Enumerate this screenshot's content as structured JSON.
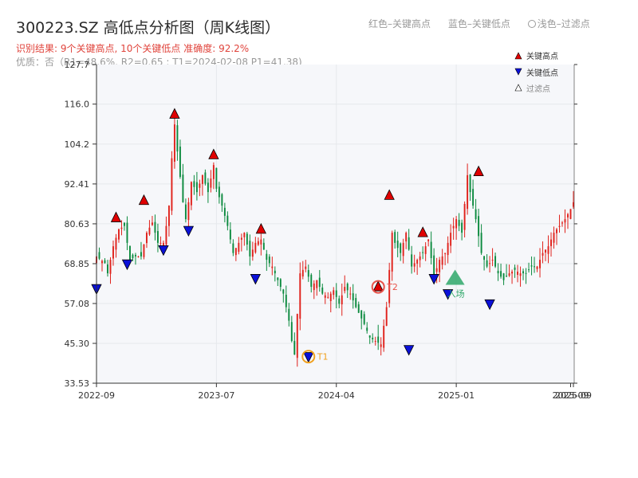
{
  "header": {
    "title": "300223.SZ 高低点分析图（周K线图）",
    "summary": "识别结果: 9个关键高点, 10个关键低点   准确度: 92.2%",
    "quality": "优质：否（R1=48.6%, R2=0.65 ; T1=2024-02-08 P1=41.38)"
  },
  "top_legend": {
    "red_high": "红色–关键高点",
    "blue_low": "蓝色–关键低点",
    "filtered": "浅色–过滤点"
  },
  "colors": {
    "up": "#e0211b",
    "down": "#0b8a3e",
    "high_marker": "#e00000",
    "low_marker": "#0a10d8",
    "t1": "#f0a01e",
    "t2": "#e8534b",
    "entry": "#2fa86a",
    "grid": "#e6e8ec",
    "plot_bg": "#f6f7fa"
  },
  "chart_data": {
    "type": "candlestick",
    "title": "300223.SZ 高低点分析图（周K线图）",
    "y_ticks": [
      "33.53",
      "45.30",
      "57.08",
      "68.85",
      "80.63",
      "92.41",
      "104.2",
      "116.0",
      "127.7"
    ],
    "y_tick_values": [
      33.53,
      45.3,
      57.08,
      68.85,
      80.63,
      92.41,
      104.2,
      116.0,
      127.7
    ],
    "ylim": [
      33.53,
      127.7
    ],
    "x_ticks": [
      "2022-09",
      "2023-07",
      "2024-04",
      "2025-01",
      "2025-09",
      "2025-09"
    ],
    "x_tick_weeks": [
      0,
      43,
      86,
      129,
      170,
      171
    ],
    "grid": true,
    "legend": {
      "placement": "top-right",
      "entries": [
        "关键高点",
        "关键低点",
        "过滤点"
      ]
    },
    "close_path": [
      [
        0,
        71
      ],
      [
        3,
        69
      ],
      [
        4,
        66
      ],
      [
        6,
        74
      ],
      [
        8,
        79
      ],
      [
        10,
        80
      ],
      [
        12,
        70
      ],
      [
        14,
        71
      ],
      [
        16,
        71
      ],
      [
        18,
        78
      ],
      [
        20,
        81
      ],
      [
        22,
        75
      ],
      [
        24,
        75
      ],
      [
        25,
        80
      ],
      [
        26,
        86
      ],
      [
        27,
        100
      ],
      [
        28,
        110
      ],
      [
        29,
        102
      ],
      [
        31,
        87
      ],
      [
        32,
        82
      ],
      [
        33,
        87
      ],
      [
        34,
        93
      ],
      [
        36,
        90
      ],
      [
        38,
        95
      ],
      [
        40,
        90
      ],
      [
        42,
        98
      ],
      [
        43,
        91
      ],
      [
        45,
        86
      ],
      [
        47,
        80
      ],
      [
        49,
        72
      ],
      [
        51,
        75
      ],
      [
        53,
        78
      ],
      [
        55,
        71
      ],
      [
        57,
        75
      ],
      [
        59,
        76
      ],
      [
        61,
        70
      ],
      [
        63,
        68
      ],
      [
        65,
        64
      ],
      [
        67,
        60
      ],
      [
        69,
        52
      ],
      [
        70,
        46
      ],
      [
        71,
        42
      ],
      [
        73,
        66
      ],
      [
        75,
        68
      ],
      [
        77,
        62
      ],
      [
        79,
        64
      ],
      [
        81,
        60
      ],
      [
        83,
        59
      ],
      [
        85,
        61
      ],
      [
        87,
        57
      ],
      [
        89,
        62
      ],
      [
        91,
        60
      ],
      [
        93,
        56
      ],
      [
        96,
        51
      ],
      [
        98,
        47
      ],
      [
        100,
        46
      ],
      [
        102,
        45
      ],
      [
        104,
        56
      ],
      [
        106,
        78
      ],
      [
        107,
        75
      ],
      [
        109,
        72
      ],
      [
        111,
        78
      ],
      [
        113,
        68
      ],
      [
        115,
        70
      ],
      [
        117,
        72
      ],
      [
        119,
        76
      ],
      [
        121,
        65
      ],
      [
        123,
        70
      ],
      [
        125,
        72
      ],
      [
        127,
        78
      ],
      [
        129,
        82
      ],
      [
        131,
        78
      ],
      [
        133,
        95
      ],
      [
        134,
        90
      ],
      [
        136,
        82
      ],
      [
        138,
        72
      ],
      [
        140,
        68
      ],
      [
        142,
        70
      ],
      [
        144,
        66
      ],
      [
        146,
        64
      ],
      [
        148,
        66
      ],
      [
        150,
        67
      ],
      [
        152,
        66
      ],
      [
        154,
        66
      ],
      [
        156,
        68
      ],
      [
        158,
        68
      ],
      [
        160,
        72
      ],
      [
        162,
        74
      ],
      [
        164,
        78
      ],
      [
        166,
        80
      ],
      [
        168,
        82
      ],
      [
        170,
        85
      ],
      [
        171,
        87
      ]
    ],
    "key_highs": [
      {
        "week": 7,
        "price": 82.4
      },
      {
        "week": 17,
        "price": 87.5
      },
      {
        "week": 28,
        "price": 113.0
      },
      {
        "week": 42,
        "price": 101.0
      },
      {
        "week": 59,
        "price": 79.0
      },
      {
        "week": 105,
        "price": 89.0
      },
      {
        "week": 117,
        "price": 78.0
      },
      {
        "week": 137,
        "price": 96.0
      },
      {
        "week": 101,
        "price": 62.0
      }
    ],
    "key_lows": [
      {
        "week": 0,
        "price": 61.5
      },
      {
        "week": 11,
        "price": 68.8
      },
      {
        "week": 24,
        "price": 73.0
      },
      {
        "week": 33,
        "price": 78.7
      },
      {
        "week": 57,
        "price": 64.5
      },
      {
        "week": 76,
        "price": 41.4
      },
      {
        "week": 112,
        "price": 43.5
      },
      {
        "week": 121,
        "price": 64.5
      },
      {
        "week": 126,
        "price": 60.0
      },
      {
        "week": 141,
        "price": 57.0
      }
    ],
    "annotations": [
      {
        "label": "T1",
        "week": 76,
        "price": 41.38,
        "kind": "t1"
      },
      {
        "label": "T2",
        "week": 101,
        "price": 62.0,
        "kind": "t2"
      },
      {
        "label": "入场",
        "week": 128,
        "price": 64.5,
        "kind": "entry"
      }
    ],
    "filtered_points": []
  }
}
